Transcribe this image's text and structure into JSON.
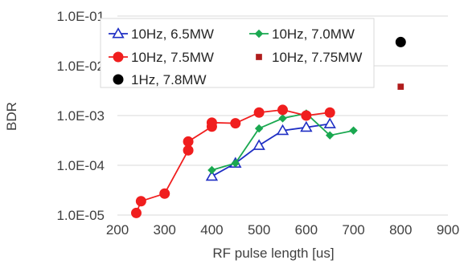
{
  "chart_data": {
    "type": "scatter",
    "xlabel": "RF pulse length [us]",
    "ylabel": "BDR",
    "xlim": [
      200,
      900
    ],
    "ylim": [
      1e-05,
      0.1
    ],
    "y_scale": "log",
    "x_ticks": [
      200,
      300,
      400,
      500,
      600,
      700,
      800,
      900
    ],
    "x_tick_labels": [
      "200",
      "300",
      "400",
      "500",
      "600",
      "700",
      "800",
      "900"
    ],
    "y_ticks": [
      1e-05,
      0.0001,
      0.001,
      0.01,
      0.1
    ],
    "y_tick_labels": [
      "1.0E-05",
      "1.0E-04",
      "1.0E-03",
      "1.0E-02",
      "1.0E-01"
    ],
    "grid": "horizontal",
    "legend_position": "top-center",
    "series": [
      {
        "name": "10Hz, 6.5MW",
        "color": "#1f2fc4",
        "marker": "triangle-open",
        "line": true,
        "points": [
          [
            400,
            6e-05
          ],
          [
            450,
            0.00011
          ],
          [
            500,
            0.00025
          ],
          [
            550,
            0.0005
          ],
          [
            600,
            0.00058
          ],
          [
            650,
            0.00068
          ]
        ]
      },
      {
        "name": "10Hz, 7.0MW",
        "color": "#1aa850",
        "marker": "diamond",
        "line": true,
        "points": [
          [
            400,
            8e-05
          ],
          [
            450,
            0.00011
          ],
          [
            500,
            0.00055
          ],
          [
            550,
            0.00088
          ],
          [
            600,
            0.0011
          ],
          [
            650,
            0.0004
          ],
          [
            700,
            0.0005
          ]
        ]
      },
      {
        "name": "10Hz, 7.5MW",
        "color": "#f01e1e",
        "marker": "circle",
        "line": true,
        "points": [
          [
            240,
            1.1e-05
          ],
          [
            250,
            1.9e-05
          ],
          [
            300,
            2.7e-05
          ],
          [
            350,
            0.0002
          ],
          [
            350,
            0.0003
          ],
          [
            400,
            0.0006
          ],
          [
            400,
            0.00072
          ],
          [
            450,
            0.0007
          ],
          [
            500,
            0.00115
          ],
          [
            550,
            0.0013
          ],
          [
            600,
            0.001
          ],
          [
            650,
            0.00115
          ]
        ]
      },
      {
        "name": "10Hz, 7.75MW",
        "color": "#b01c1c",
        "marker": "square",
        "line": false,
        "points": [
          [
            800,
            0.0038
          ]
        ]
      },
      {
        "name": "1Hz, 7.8MW",
        "color": "#000000",
        "marker": "circle",
        "line": false,
        "points": [
          [
            800,
            0.03
          ]
        ]
      }
    ]
  }
}
